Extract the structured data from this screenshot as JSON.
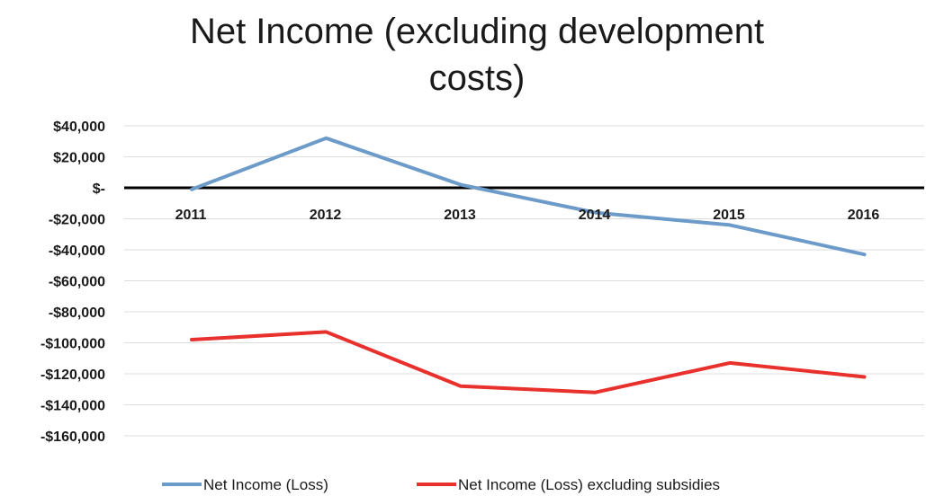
{
  "chart_data": {
    "type": "line",
    "title_lines": [
      "Net Income (excluding development",
      "costs)"
    ],
    "categories": [
      "2011",
      "2012",
      "2013",
      "2014",
      "2015",
      "2016"
    ],
    "y_tick_labels": [
      "$40,000",
      "$20,000",
      "$-",
      "-$20,000",
      "-$40,000",
      "-$60,000",
      "-$80,000",
      "-$100,000",
      "-$120,000",
      "-$140,000",
      "-$160,000"
    ],
    "ylim": [
      -160000,
      40000
    ],
    "grid": true,
    "legend_position": "bottom",
    "series": [
      {
        "name": "Net Income (Loss)",
        "color": "#6c9bc9",
        "values": [
          -1000,
          32000,
          2000,
          -16000,
          -24000,
          -43000
        ]
      },
      {
        "name": "Net Income (Loss) excluding subsidies",
        "color": "#e8312c",
        "values": [
          -98000,
          -93000,
          -128000,
          -132000,
          -113000,
          -122000
        ]
      }
    ]
  }
}
